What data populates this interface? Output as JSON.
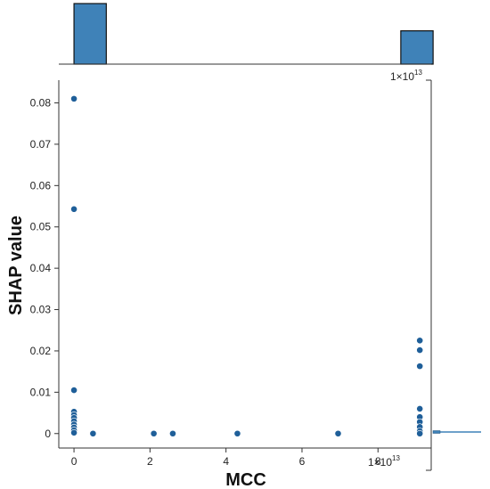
{
  "chart_data": {
    "type": "scatter",
    "title": "",
    "xlabel": "MCC",
    "ylabel": "SHAP value",
    "x_multiplier": "1×10",
    "x_multiplier_exp": "13",
    "xlim": [
      -0.4,
      9.4
    ],
    "ylim": [
      -0.0035,
      0.0855
    ],
    "x_ticks": [
      0,
      2,
      4,
      6,
      8
    ],
    "y_ticks": [
      0,
      0.01,
      0.02,
      0.03,
      0.04,
      0.05,
      0.06,
      0.07,
      0.08
    ],
    "y_tick_labels": [
      "0",
      "0.01",
      "0.02",
      "0.03",
      "0.04",
      "0.05",
      "0.06",
      "0.07",
      "0.08"
    ],
    "grid": false,
    "point_color": "#1f5f99",
    "hist_color": "#3f82b8",
    "points": [
      {
        "x": 0,
        "y": 0.081
      },
      {
        "x": 0,
        "y": 0.0543
      },
      {
        "x": 0,
        "y": 0.0105
      },
      {
        "x": 0,
        "y": 0.0053
      },
      {
        "x": 0,
        "y": 0.0045
      },
      {
        "x": 0,
        "y": 0.0038
      },
      {
        "x": 0,
        "y": 0.003
      },
      {
        "x": 0,
        "y": 0.0022
      },
      {
        "x": 0,
        "y": 0.0015
      },
      {
        "x": 0,
        "y": 0.0008
      },
      {
        "x": 0,
        "y": 0.0002
      },
      {
        "x": 0.5,
        "y": 0
      },
      {
        "x": 2.1,
        "y": 0
      },
      {
        "x": 2.6,
        "y": 0
      },
      {
        "x": 4.3,
        "y": 0
      },
      {
        "x": 6.95,
        "y": 0
      },
      {
        "x": 9.1,
        "y": 0.0225
      },
      {
        "x": 9.1,
        "y": 0.0202
      },
      {
        "x": 9.1,
        "y": 0.0163
      },
      {
        "x": 9.1,
        "y": 0.006
      },
      {
        "x": 9.1,
        "y": 0.004
      },
      {
        "x": 9.1,
        "y": 0.0028
      },
      {
        "x": 9.1,
        "y": 0.0016
      },
      {
        "x": 9.1,
        "y": 0.0006
      },
      {
        "x": 9.1,
        "y": 0
      }
    ],
    "x_histogram": [
      {
        "bin_start": 0,
        "bin_end": 0.85,
        "relative_height": 1.0
      },
      {
        "bin_start": 8.6,
        "bin_end": 9.45,
        "relative_height": 0.55
      }
    ]
  }
}
